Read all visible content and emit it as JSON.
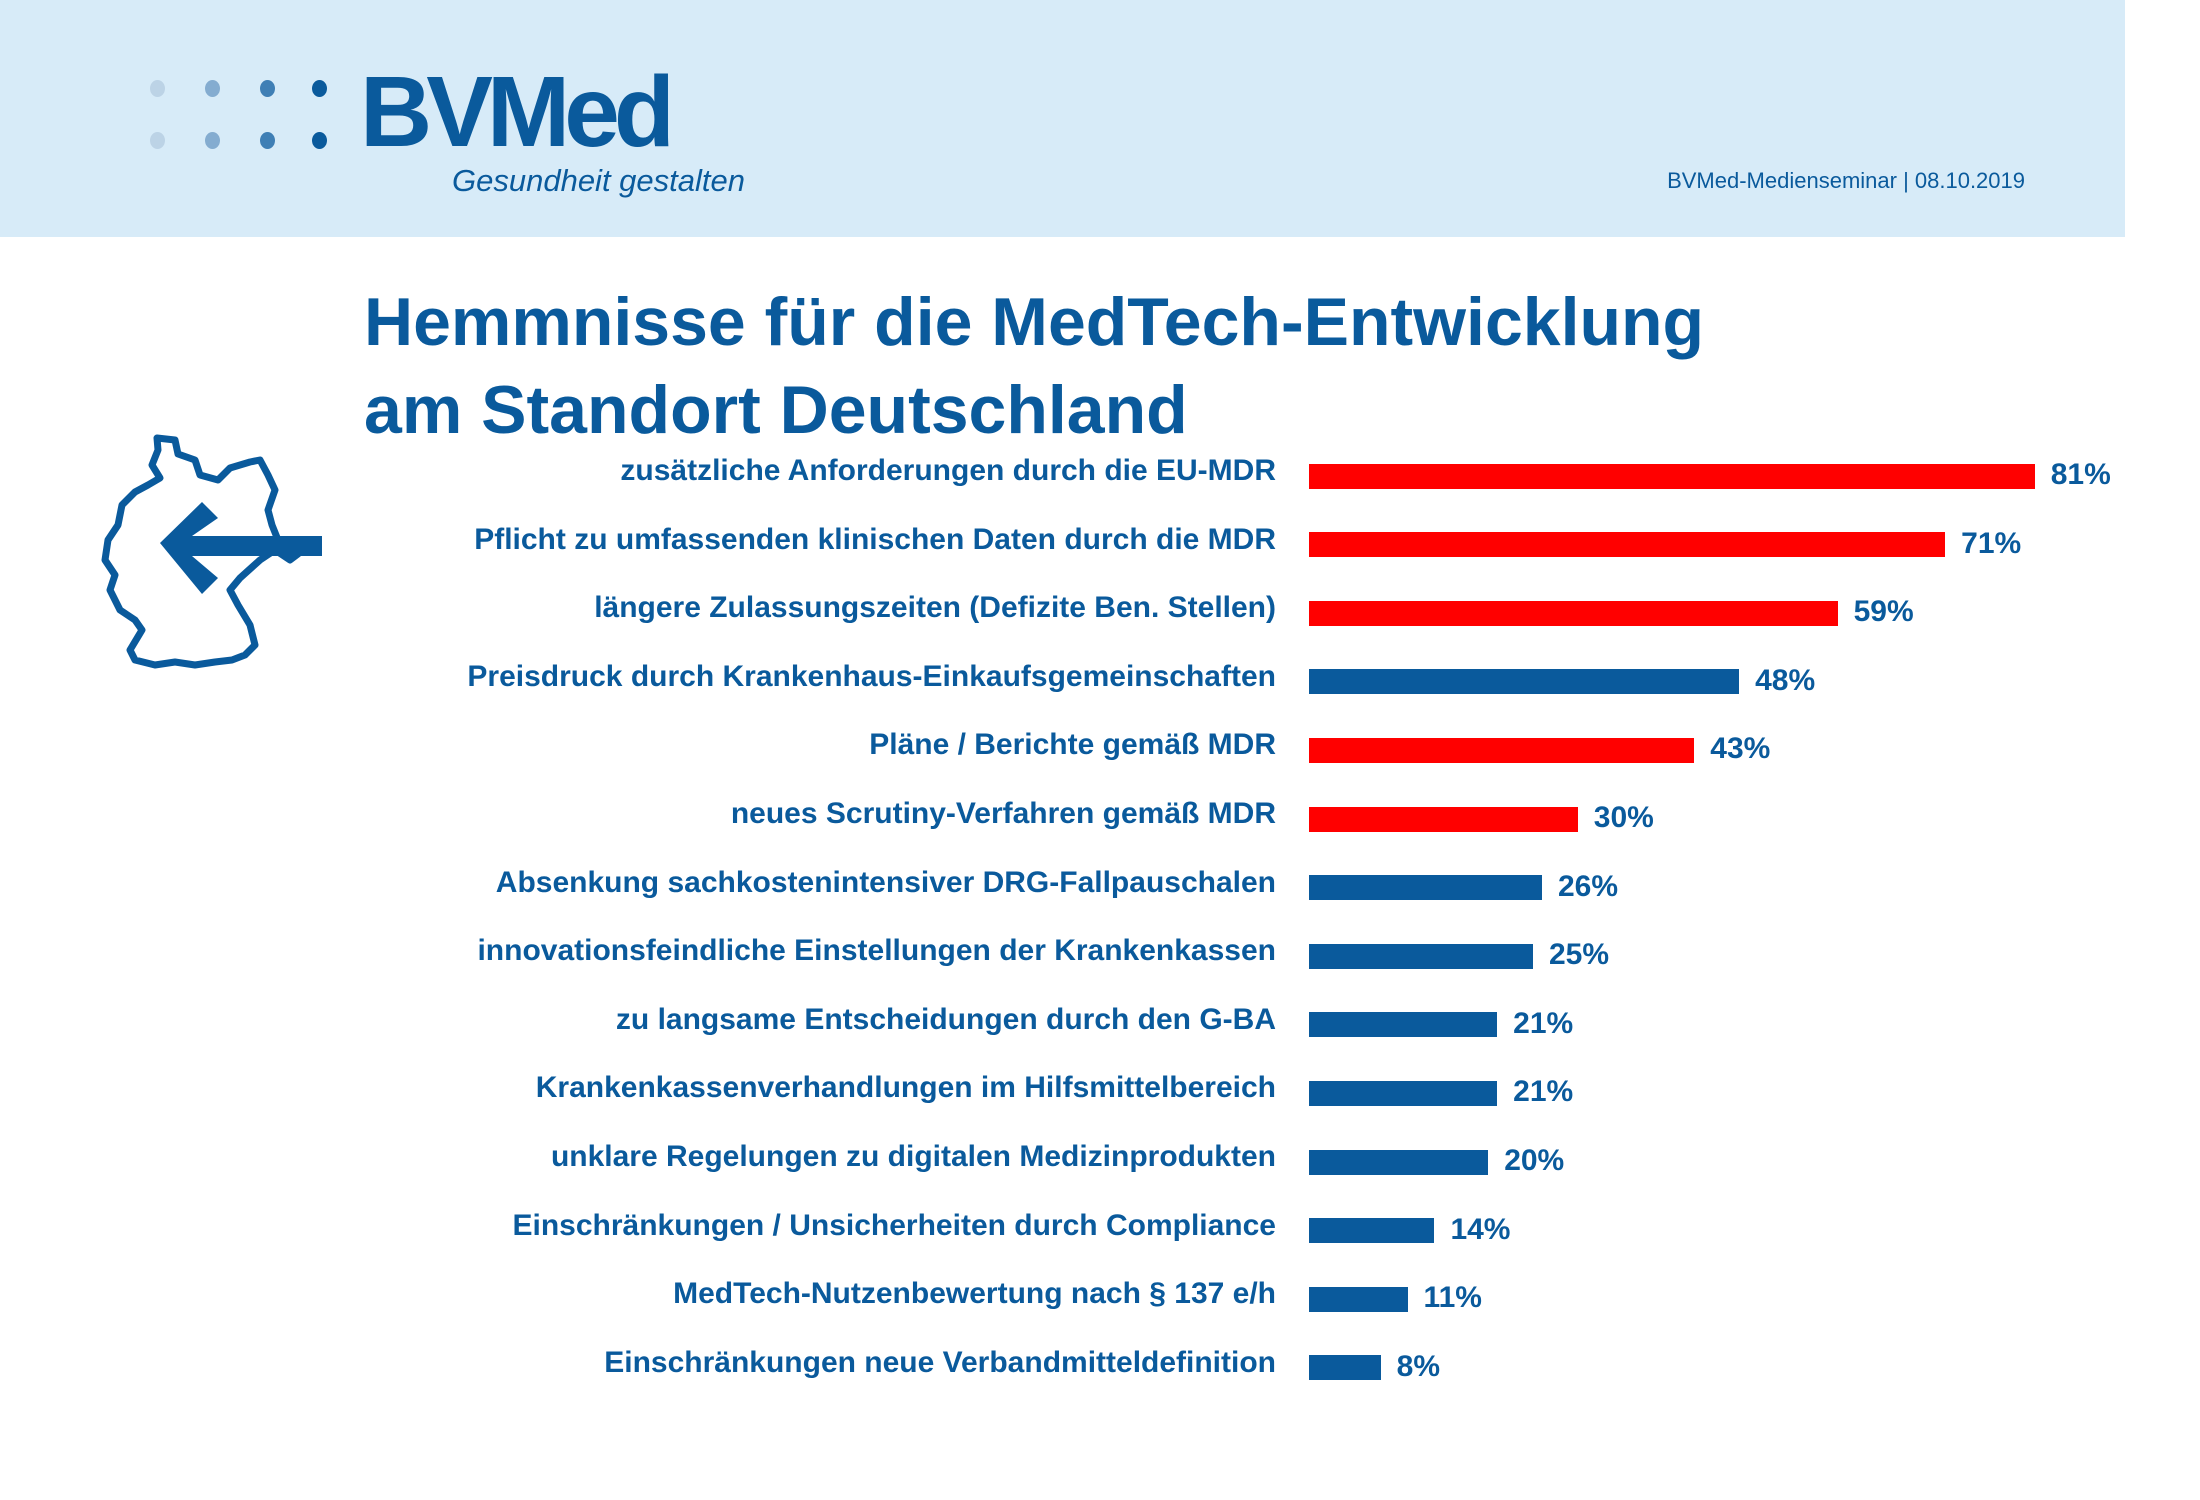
{
  "header": {
    "logo": "BVMed",
    "tagline": "Gesundheit gestalten",
    "event": "BVMed-Medienseminar | 08.10.2019",
    "icons": [
      "logo-dots-icon"
    ]
  },
  "title_line1": "Hemmnisse für die MedTech-Entwicklung",
  "title_line2": "am Standort Deutschland",
  "map_icon": "germany-map-arrow-icon",
  "colors": {
    "brand_blue": "#0a5a9c",
    "highlight_red": "#ff0000",
    "header_bg": "#d7ebf8"
  },
  "chart_data": {
    "type": "bar",
    "orientation": "horizontal",
    "title": "Hemmnisse für die MedTech-Entwicklung am Standort Deutschland",
    "xlabel": "",
    "ylabel": "",
    "xlim": [
      0,
      100
    ],
    "grid": false,
    "unit": "%",
    "categories": [
      "zusätzliche Anforderungen durch die EU-MDR",
      "Pflicht zu umfassenden klinischen Daten durch die MDR",
      "längere Zulassungszeiten (Defizite Ben. Stellen)",
      "Preisdruck durch Krankenhaus-Einkaufsgemeinschaften",
      "Pläne / Berichte gemäß MDR",
      "neues Scrutiny-Verfahren gemäß MDR",
      "Absenkung sachkostenintensiver DRG-Fallpauschalen",
      "innovationsfeindliche Einstellungen der Krankenkassen",
      "zu langsame Entscheidungen durch den G-BA",
      "Krankenkassenverhandlungen im Hilfsmittelbereich",
      "unklare Regelungen zu digitalen Medizinprodukten",
      "Einschränkungen / Unsicherheiten durch Compliance",
      "MedTech-Nutzenbewertung nach § 137 e/h",
      "Einschränkungen neue Verbandmitteldefinition"
    ],
    "values": [
      81,
      71,
      59,
      48,
      43,
      30,
      26,
      25,
      21,
      21,
      20,
      14,
      11,
      8
    ],
    "value_labels": [
      "81%",
      "71%",
      "59%",
      "48%",
      "43%",
      "30%",
      "26%",
      "25%",
      "21%",
      "21%",
      "20%",
      "14%",
      "11%",
      "8%"
    ],
    "bar_colors": [
      "#ff0000",
      "#ff0000",
      "#ff0000",
      "#0a5a9c",
      "#ff0000",
      "#ff0000",
      "#0a5a9c",
      "#0a5a9c",
      "#0a5a9c",
      "#0a5a9c",
      "#0a5a9c",
      "#0a5a9c",
      "#0a5a9c",
      "#0a5a9c"
    ],
    "highlight_group": "MDR-related items shown in red"
  }
}
